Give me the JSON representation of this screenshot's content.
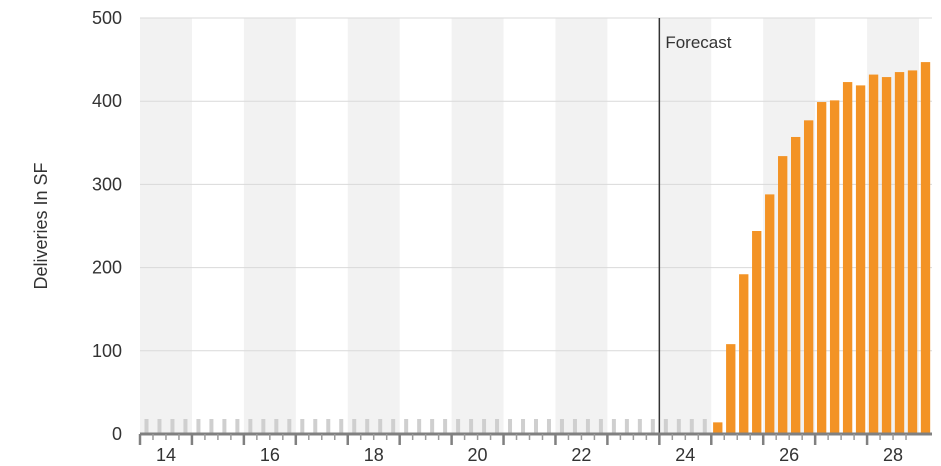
{
  "chart_data": {
    "type": "bar",
    "title": "",
    "xlabel": "",
    "ylabel": "Deliveries In SF",
    "ylim": [
      0,
      500
    ],
    "xlim": [
      13.5,
      28.75
    ],
    "y_ticks": [
      "0",
      "100",
      "200",
      "300",
      "400",
      "500"
    ],
    "x_ticks": [
      "14",
      "16",
      "18",
      "20",
      "22",
      "24",
      "26",
      "28"
    ],
    "x_tick_values": [
      14,
      16,
      18,
      20,
      22,
      24,
      26,
      28
    ],
    "grid": "horizontal",
    "banding": "alternating-years",
    "forecast": {
      "label": "Forecast",
      "x": 23.5
    },
    "series": [
      {
        "color": "#f39325",
        "x": [
          24.5,
          24.75,
          25.0,
          25.25,
          25.5,
          25.75,
          26.0,
          26.25,
          26.5,
          26.75,
          27.0,
          27.25,
          27.5,
          27.75,
          28.0,
          28.25,
          28.5
        ],
        "values": [
          14,
          108,
          192,
          244,
          288,
          334,
          357,
          377,
          399,
          401,
          423,
          419,
          432,
          429,
          435,
          437,
          447
        ]
      }
    ]
  }
}
